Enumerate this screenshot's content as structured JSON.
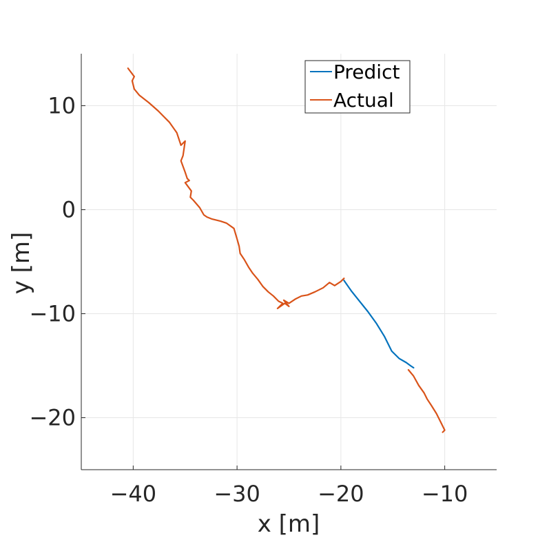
{
  "chart_data": {
    "type": "line",
    "title": "",
    "xlabel": "x [m]",
    "ylabel": "y [m]",
    "xlim": [
      -45,
      -5
    ],
    "ylim": [
      -25,
      15
    ],
    "xticks": [
      -40,
      -30,
      -20,
      -10
    ],
    "yticks": [
      -20,
      -10,
      0,
      10
    ],
    "xtick_labels": [
      "−40",
      "−30",
      "−20",
      "−10"
    ],
    "ytick_labels": [
      "−20",
      "−10",
      "0",
      "10"
    ],
    "grid": true,
    "legend_position": "top-right",
    "series": [
      {
        "name": "Predict",
        "color": "#0072BD",
        "x": [
          -19.7,
          -19.0,
          -18.2,
          -17.4,
          -16.6,
          -15.8,
          -15.1,
          -14.4,
          -13.7,
          -13.3,
          -13.0
        ],
        "y": [
          -6.8,
          -7.8,
          -8.8,
          -9.8,
          -10.9,
          -12.2,
          -13.6,
          -14.3,
          -14.7,
          -15.0,
          -15.2
        ]
      },
      {
        "name": "Actual",
        "color": "#D95319",
        "x": [
          -40.5,
          -39.9,
          -40.1,
          -39.9,
          -39.4,
          -38.5,
          -37.6,
          -37.0,
          -36.5,
          -35.8,
          -35.4,
          -35.0,
          -35.2,
          -35.4,
          -35.0,
          -34.8,
          -34.6,
          -35.0,
          -34.4,
          -34.5,
          -34.2,
          -33.6,
          -33.2,
          -32.9,
          -32.4,
          -31.6,
          -31.0,
          -30.3,
          -30.0,
          -29.8,
          -29.7,
          -29.3,
          -28.9,
          -28.5,
          -28.0,
          -27.5,
          -27.0,
          -26.5,
          -26.0,
          -25.6,
          -26.1,
          -25.4,
          -25.0,
          -25.5,
          -25.0,
          -24.4,
          -23.8,
          -23.2,
          -22.5,
          -21.7,
          -21.1,
          -20.6,
          -20.0,
          -19.7
        ],
        "y": [
          13.6,
          12.8,
          12.4,
          11.6,
          11.0,
          10.3,
          9.5,
          8.9,
          8.4,
          7.4,
          6.2,
          6.6,
          5.2,
          4.7,
          3.6,
          3.0,
          2.8,
          2.6,
          1.8,
          1.2,
          0.9,
          0.2,
          -0.5,
          -0.7,
          -0.9,
          -1.1,
          -1.3,
          -1.8,
          -2.8,
          -3.5,
          -4.2,
          -4.8,
          -5.5,
          -6.1,
          -6.7,
          -7.4,
          -7.9,
          -8.3,
          -8.8,
          -9.0,
          -9.5,
          -9.0,
          -9.3,
          -8.7,
          -9.0,
          -8.6,
          -8.3,
          -8.2,
          -7.9,
          -7.5,
          -7.0,
          -7.3,
          -6.9,
          -6.6
        ]
      },
      {
        "name": "",
        "color": "#D95319",
        "x": [
          -13.5,
          -13.0,
          -12.5,
          -12.0,
          -11.7,
          -11.3,
          -10.8,
          -10.4,
          -10.0,
          -10.2
        ],
        "y": [
          -15.4,
          -16.0,
          -16.9,
          -17.6,
          -18.2,
          -18.8,
          -19.6,
          -20.4,
          -21.2,
          -21.4
        ]
      }
    ]
  }
}
